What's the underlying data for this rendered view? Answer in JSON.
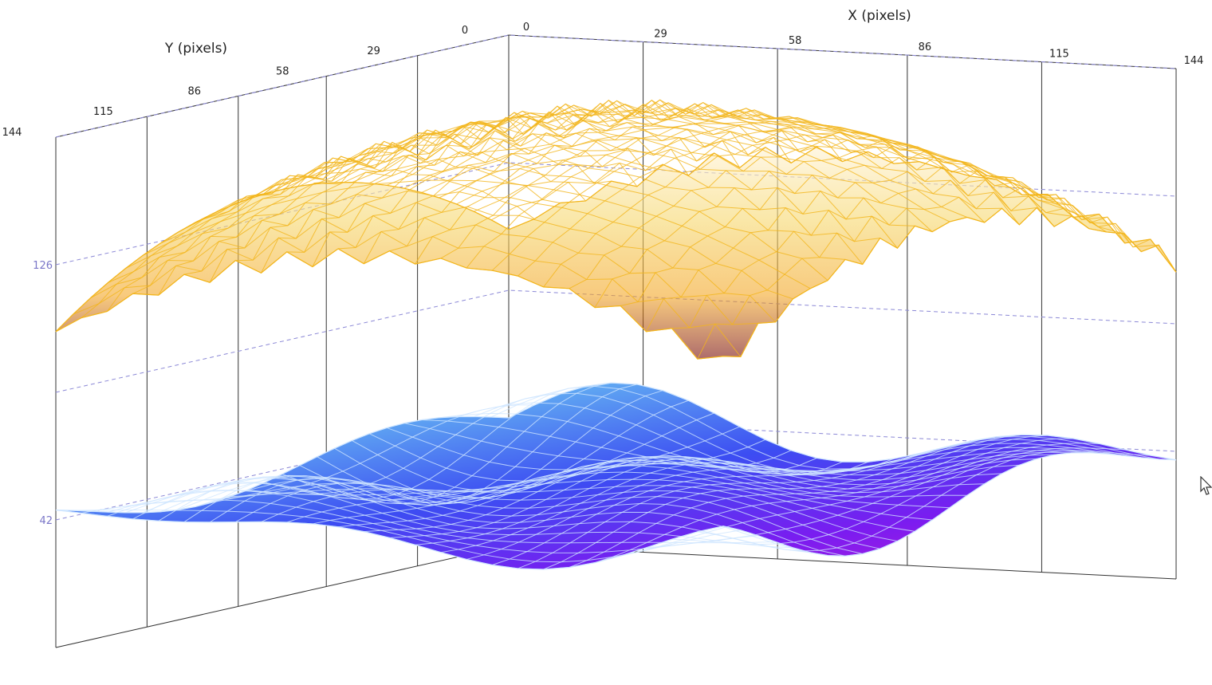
{
  "chart_data": {
    "type": "surface3d",
    "xlabel": "X (pixels)",
    "ylabel": "Y (pixels)",
    "x_ticks": [
      "0",
      "29",
      "58",
      "86",
      "115",
      "144"
    ],
    "y_ticks": [
      "0",
      "29",
      "58",
      "86",
      "115",
      "144"
    ],
    "z_ticks": [
      "42",
      "126"
    ],
    "x_range": [
      0,
      144
    ],
    "y_range": [
      0,
      144
    ],
    "z_range": [
      0,
      168
    ],
    "grid": true,
    "series": [
      {
        "colormap": "hot",
        "colors": [
          "#7a0f0f",
          "#e8341c",
          "#f3a21a",
          "#f6d870",
          "#fff3d6"
        ],
        "mean_height": 130,
        "shape": "dome",
        "opacity": 0.72
      },
      {
        "colormap": "cool-plasma",
        "colors": [
          "#c21bd6",
          "#7a1cf0",
          "#3c4df2",
          "#5fa6f2",
          "#d9f6ff"
        ],
        "mean_height": 42,
        "shape": "wavy",
        "opacity": 1.0
      }
    ]
  },
  "icons": {
    "cursor": "mouse-pointer-icon"
  }
}
